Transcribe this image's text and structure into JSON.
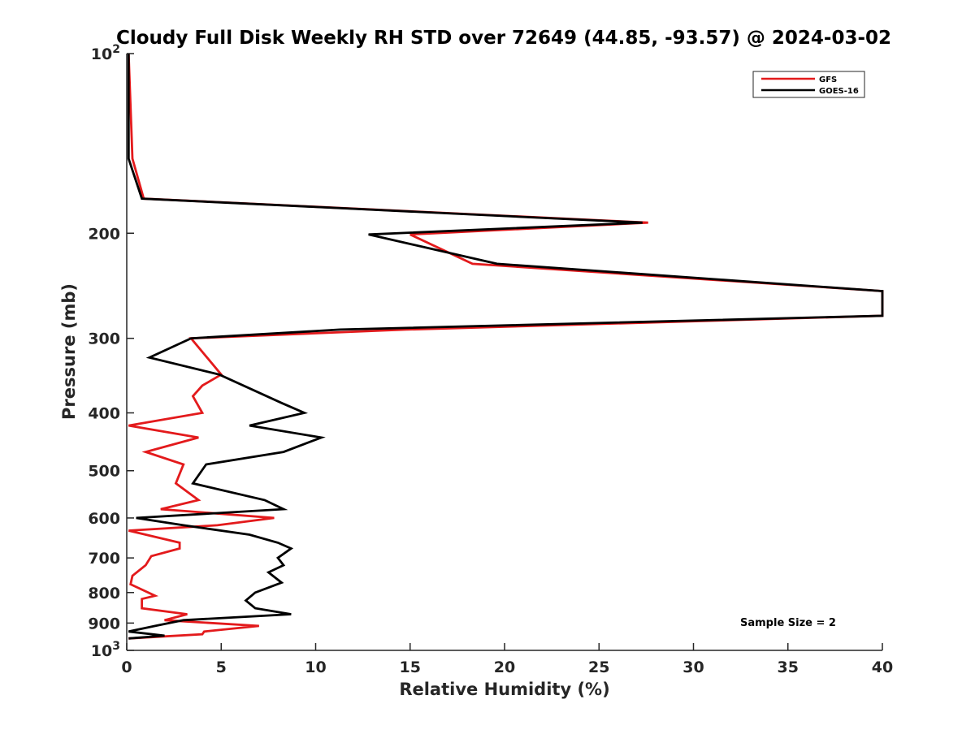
{
  "chart_data": {
    "type": "line",
    "title": "Cloudy Full Disk Weekly RH STD over 72649 (44.85, -93.57) @ 2024-03-02",
    "xlabel": "Relative Humidity (%)",
    "ylabel": "Pressure (mb)",
    "xlim": [
      0,
      40
    ],
    "ylim": [
      100,
      1000
    ],
    "yscale": "log",
    "y_reversed": true,
    "grid": false,
    "legend_position": "top-right",
    "xticks": [
      "0",
      "5",
      "10",
      "15",
      "20",
      "25",
      "30",
      "35",
      "40"
    ],
    "xtick_values": [
      0,
      5,
      10,
      15,
      20,
      25,
      30,
      35,
      40
    ],
    "yticks": [
      {
        "value": 100,
        "base": "10",
        "exp": "2"
      },
      {
        "value": 200,
        "base": "200",
        "exp": ""
      },
      {
        "value": 300,
        "base": "300",
        "exp": ""
      },
      {
        "value": 400,
        "base": "400",
        "exp": ""
      },
      {
        "value": 500,
        "base": "500",
        "exp": ""
      },
      {
        "value": 600,
        "base": "600",
        "exp": ""
      },
      {
        "value": 700,
        "base": "700",
        "exp": ""
      },
      {
        "value": 800,
        "base": "800",
        "exp": ""
      },
      {
        "value": 900,
        "base": "900",
        "exp": ""
      },
      {
        "value": 1000,
        "base": "10",
        "exp": "3"
      }
    ],
    "annotation": "Sample Size = 2",
    "series": [
      {
        "name": "GFS",
        "color": "#e31a1c",
        "points": [
          [
            0.1,
            100
          ],
          [
            0.3,
            150
          ],
          [
            0.9,
            175
          ],
          [
            27.6,
            192
          ],
          [
            15.0,
            201
          ],
          [
            18.3,
            225
          ],
          [
            40,
            250
          ],
          [
            40,
            275
          ],
          [
            14.8,
            290
          ],
          [
            3.4,
            300
          ],
          [
            5.0,
            345
          ],
          [
            4.0,
            360
          ],
          [
            3.5,
            375
          ],
          [
            4.0,
            400
          ],
          [
            0.1,
            420
          ],
          [
            3.8,
            440
          ],
          [
            1.0,
            465
          ],
          [
            3.0,
            488
          ],
          [
            2.6,
            525
          ],
          [
            3.8,
            560
          ],
          [
            1.8,
            580
          ],
          [
            7.8,
            600
          ],
          [
            4.8,
            617
          ],
          [
            0.1,
            630
          ],
          [
            2.8,
            660
          ],
          [
            2.8,
            675
          ],
          [
            1.3,
            695
          ],
          [
            1.0,
            720
          ],
          [
            0.3,
            750
          ],
          [
            0.2,
            775
          ],
          [
            1.5,
            810
          ],
          [
            0.8,
            820
          ],
          [
            0.8,
            850
          ],
          [
            3.2,
            870
          ],
          [
            2.0,
            890
          ],
          [
            7.0,
            910
          ],
          [
            4.1,
            930
          ],
          [
            4.0,
            940
          ],
          [
            0.1,
            955
          ]
        ]
      },
      {
        "name": "GOES-16",
        "color": "#000000",
        "points": [
          [
            0.1,
            100
          ],
          [
            0.1,
            150
          ],
          [
            0.8,
            175
          ],
          [
            27.3,
            192
          ],
          [
            12.8,
            201
          ],
          [
            19.6,
            225
          ],
          [
            40,
            250
          ],
          [
            40,
            275
          ],
          [
            11.3,
            290
          ],
          [
            3.4,
            300
          ],
          [
            1.2,
            323
          ],
          [
            4.9,
            345
          ],
          [
            8.2,
            385
          ],
          [
            9.4,
            400
          ],
          [
            6.5,
            420
          ],
          [
            10.3,
            440
          ],
          [
            8.3,
            465
          ],
          [
            4.2,
            488
          ],
          [
            3.5,
            525
          ],
          [
            7.3,
            560
          ],
          [
            8.3,
            580
          ],
          [
            0.5,
            600
          ],
          [
            3.0,
            617
          ],
          [
            6.5,
            640
          ],
          [
            8.0,
            660
          ],
          [
            8.7,
            675
          ],
          [
            8.0,
            700
          ],
          [
            8.3,
            720
          ],
          [
            7.5,
            740
          ],
          [
            8.2,
            770
          ],
          [
            6.8,
            800
          ],
          [
            6.3,
            825
          ],
          [
            6.8,
            850
          ],
          [
            8.7,
            870
          ],
          [
            3.0,
            890
          ],
          [
            1.5,
            910
          ],
          [
            0.1,
            930
          ],
          [
            2.0,
            945
          ],
          [
            0.1,
            955
          ]
        ]
      }
    ]
  }
}
